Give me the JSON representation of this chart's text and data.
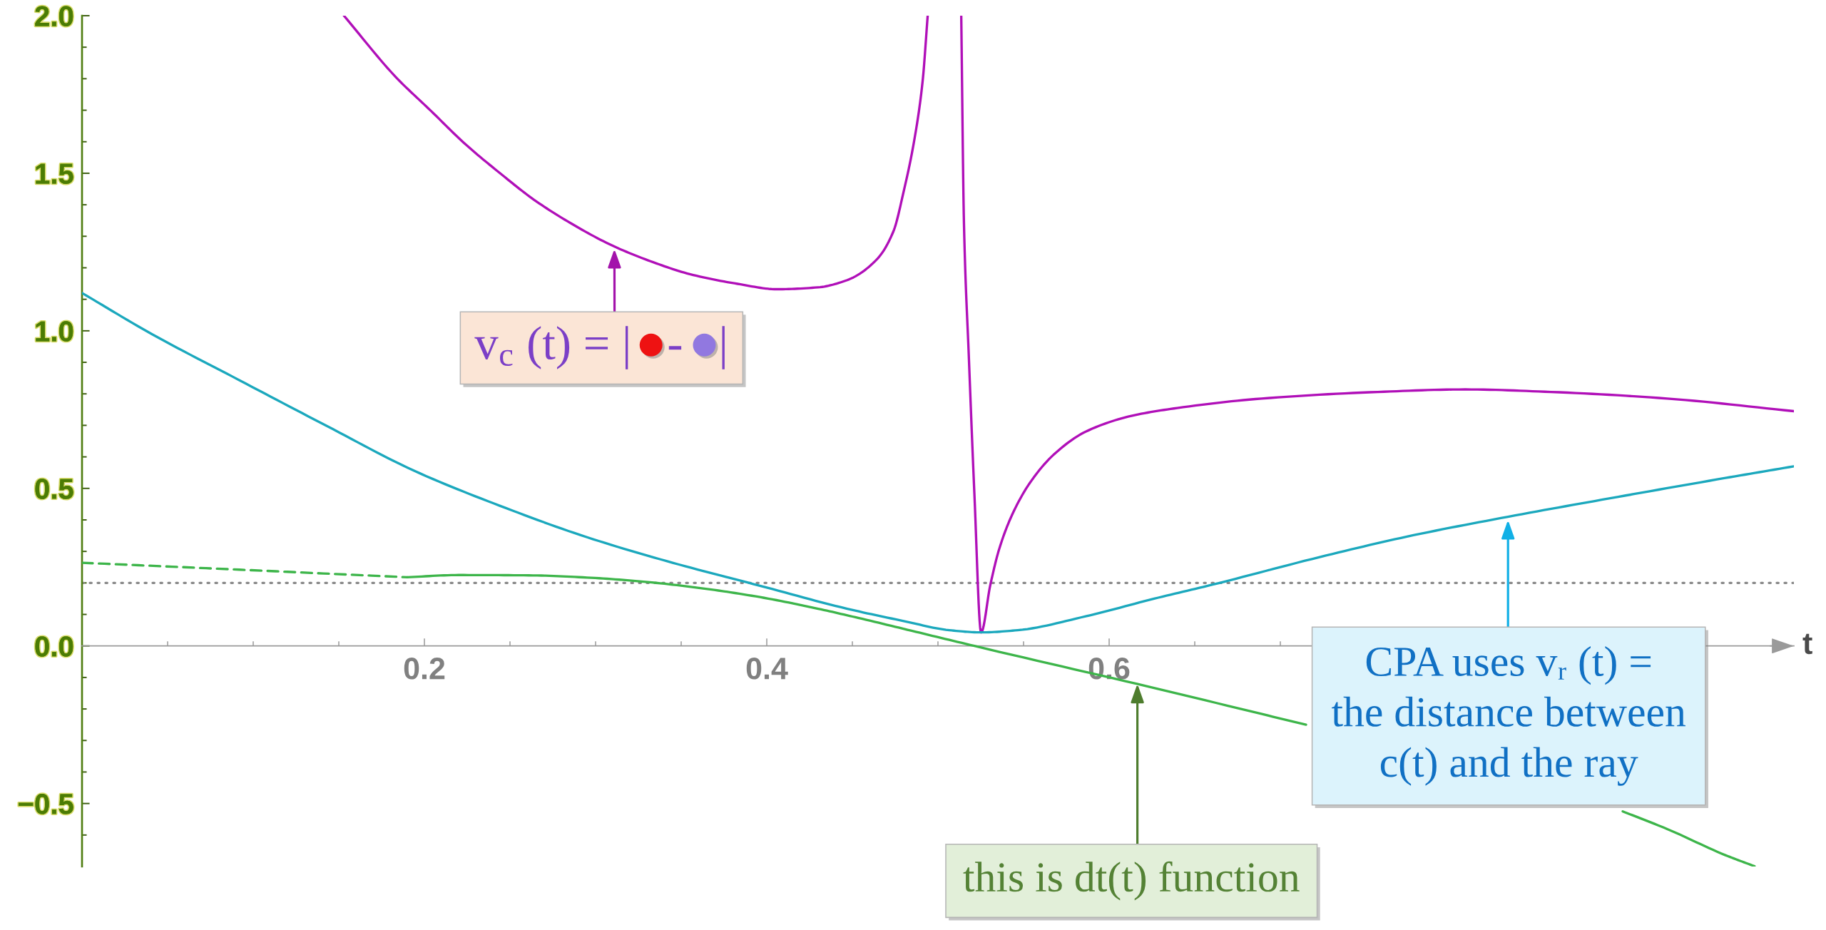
{
  "chart_data": {
    "type": "line",
    "xlabel": "t",
    "xlim": [
      0,
      1
    ],
    "ylim": [
      -0.7,
      2
    ],
    "xticks": [
      {
        "value": 0.05,
        "label": null
      },
      {
        "value": 0.1,
        "label": null
      },
      {
        "value": 0.15,
        "label": null
      },
      0.2,
      {
        "value": 0.25,
        "label": null
      },
      {
        "value": 0.3,
        "label": null
      },
      {
        "value": 0.35,
        "label": null
      },
      0.4,
      {
        "value": 0.45,
        "label": null
      },
      {
        "value": 0.5,
        "label": null
      },
      {
        "value": 0.55,
        "label": null
      },
      0.6,
      {
        "value": 0.65,
        "label": null
      },
      {
        "value": 0.7,
        "label": null
      }
    ],
    "yticks": [
      {
        "value": -0.6,
        "label": null
      },
      {
        "value": -0.5,
        "label": "−0.5"
      },
      {
        "value": -0.4,
        "label": null
      },
      {
        "value": -0.3,
        "label": null
      },
      {
        "value": -0.2,
        "label": null
      },
      {
        "value": -0.1,
        "label": null
      },
      {
        "value": 0,
        "label": "0.0"
      },
      {
        "value": 0.1,
        "label": null
      },
      {
        "value": 0.2,
        "label": null
      },
      {
        "value": 0.3,
        "label": null
      },
      {
        "value": 0.4,
        "label": null
      },
      0.5,
      {
        "value": 0.6,
        "label": null
      },
      {
        "value": 0.7,
        "label": null
      },
      {
        "value": 0.8,
        "label": null
      },
      {
        "value": 0.9,
        "label": null
      },
      {
        "value": 1,
        "label": "1.0"
      },
      {
        "value": 1.1,
        "label": null
      },
      {
        "value": 1.2,
        "label": null
      },
      {
        "value": 1.3,
        "label": null
      },
      {
        "value": 1.4,
        "label": null
      },
      1.5,
      {
        "value": 1.6,
        "label": null
      },
      {
        "value": 1.7,
        "label": null
      },
      {
        "value": 1.8,
        "label": null
      },
      {
        "value": 1.9,
        "label": null
      },
      {
        "value": 2,
        "label": "2.0"
      }
    ],
    "series": [
      {
        "color": "#b00fb8",
        "x": [
          0.153,
          0.183,
          0.204,
          0.224,
          0.244,
          0.264,
          0.285,
          0.31,
          0.332,
          0.355,
          0.383,
          0.406,
          0.43,
          0.447,
          0.464,
          0.474,
          0.48,
          0.486,
          0.491,
          0.494,
          0.504,
          0.5136,
          0.5152,
          0.5181,
          0.5213,
          0.5252,
          0.5306,
          0.5358,
          0.5439,
          0.5544,
          0.5678,
          0.5863,
          0.613,
          0.6397,
          0.689,
          0.757,
          0.808,
          0.858,
          0.926,
          1.0
        ],
        "values": [
          2.0,
          1.807,
          1.697,
          1.592,
          1.501,
          1.416,
          1.343,
          1.27,
          1.221,
          1.18,
          1.149,
          1.132,
          1.138,
          1.161,
          1.225,
          1.316,
          1.443,
          1.6,
          1.79,
          2.0,
          null,
          2.0,
          1.338,
          0.909,
          0.48,
          0.043,
          0.194,
          0.308,
          0.423,
          0.523,
          0.608,
          0.68,
          0.73,
          0.755,
          0.785,
          0.806,
          0.814,
          0.806,
          0.785,
          0.745
        ]
      },
      {
        "color": "#1ba8bd",
        "x": [
          0,
          0.041,
          0.092,
          0.143,
          0.194,
          0.244,
          0.295,
          0.345,
          0.396,
          0.447,
          0.48,
          0.5066,
          0.5252,
          0.5466,
          0.5863,
          0.6263,
          0.66,
          0.723,
          0.774,
          0.833,
          0.892,
          0.96,
          1.0
        ],
        "values": [
          1.12,
          0.989,
          0.843,
          0.698,
          0.556,
          0.445,
          0.345,
          0.264,
          0.191,
          0.118,
          0.079,
          0.05,
          0.043,
          0.05,
          0.094,
          0.15,
          0.194,
          0.282,
          0.347,
          0.41,
          0.468,
          0.533,
          0.57
        ]
      },
      {
        "color": "#3db54a",
        "line_style": "dashed",
        "x": [
          0,
          0.092,
          0.19
        ],
        "values": [
          0.264,
          0.242,
          0.218
        ]
      },
      {
        "color": "#3db54a",
        "x": [
          0.19,
          0.22,
          0.261,
          0.295,
          0.328,
          0.362,
          0.396,
          0.43,
          0.4534,
          0.487,
          0.5213,
          0.6236,
          0.715,
          0.8,
          0.9,
          0.926,
          0.96,
          0.977
        ],
        "values": [
          0.218,
          0.225,
          0.224,
          0.217,
          0.204,
          0.183,
          0.155,
          0.118,
          0.089,
          0.045,
          0.0,
          -0.13,
          -0.25,
          null,
          -0.525,
          -0.581,
          -0.664,
          -0.699
        ]
      }
    ],
    "ref_lines": [
      {
        "axis": "y",
        "value": 0.2,
        "color": "#888888",
        "line_style": "dotted"
      }
    ],
    "annotations": [
      {
        "text": "v$_{c}$ (t) = |   -   |",
        "x": 0.311,
        "y": 1.26
      },
      {
        "text": "CPA uses vᵣ (t) =\nthe distance between\nc(t) and the ray",
        "x": 0.833,
        "y": 0.4
      },
      {
        "text": "this is dt(t) function",
        "x": 0.6165,
        "y": -0.12
      }
    ]
  }
}
